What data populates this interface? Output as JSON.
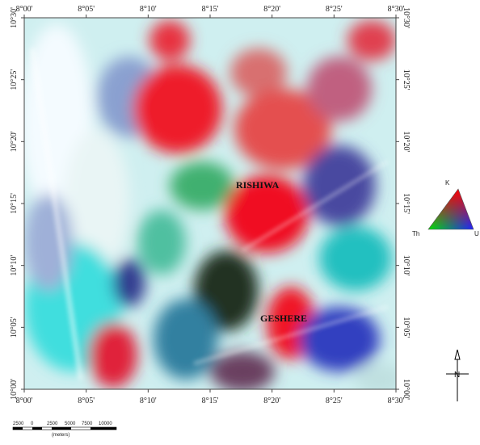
{
  "map": {
    "x_ticks": [
      "8°00'",
      "8°05'",
      "8°10'",
      "8°15'",
      "8°20'",
      "8°25'",
      "8°30'"
    ],
    "y_ticks": [
      "10°30'",
      "10°25'",
      "10°20'",
      "10°15'",
      "10°10'",
      "10°05'",
      "10°00'"
    ],
    "places": [
      {
        "label": "RISHIWA"
      },
      {
        "label": "GESHERE"
      }
    ]
  },
  "legend": {
    "top": "K",
    "left": "Th",
    "right": "U"
  },
  "scale_bar": {
    "labels": [
      "2500",
      "0",
      "2500",
      "5000",
      "7500",
      "10000"
    ],
    "unit": "(meters)"
  },
  "north_arrow": "N"
}
